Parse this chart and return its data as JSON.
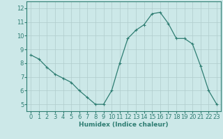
{
  "x": [
    0,
    1,
    2,
    3,
    4,
    5,
    6,
    7,
    8,
    9,
    10,
    11,
    12,
    13,
    14,
    15,
    16,
    17,
    18,
    19,
    20,
    21,
    22,
    23
  ],
  "y": [
    8.6,
    8.3,
    7.7,
    7.2,
    6.9,
    6.6,
    6.0,
    5.5,
    5.0,
    5.0,
    6.0,
    8.0,
    9.8,
    10.4,
    10.8,
    11.6,
    11.7,
    10.9,
    9.8,
    9.8,
    9.4,
    7.8,
    6.0,
    5.0
  ],
  "line_color": "#2e7d72",
  "marker": "+",
  "marker_size": 3,
  "marker_linewidth": 0.8,
  "line_width": 0.9,
  "bg_color": "#cce8e8",
  "grid_color": "#b0cccc",
  "xlabel": "Humidex (Indice chaleur)",
  "xlabel_fontsize": 6.5,
  "tick_fontsize": 6,
  "ylim": [
    4.5,
    12.5
  ],
  "xlim": [
    -0.5,
    23.5
  ],
  "yticks": [
    5,
    6,
    7,
    8,
    9,
    10,
    11,
    12
  ],
  "xticks": [
    0,
    1,
    2,
    3,
    4,
    5,
    6,
    7,
    8,
    9,
    10,
    11,
    12,
    13,
    14,
    15,
    16,
    17,
    18,
    19,
    20,
    21,
    22,
    23
  ]
}
